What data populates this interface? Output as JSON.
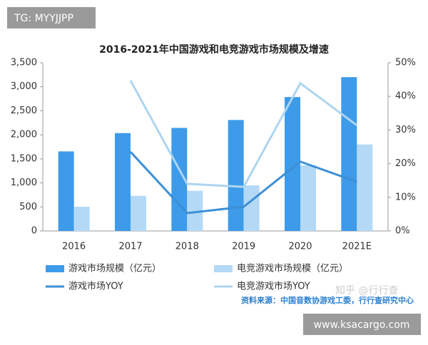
{
  "chart_data": {
    "type": "bar_line",
    "title": "2016-2021年中国游戏和电竞游戏市场规模及增速",
    "categories": [
      "2016",
      "2017",
      "2018",
      "2019",
      "2020",
      "2021E"
    ],
    "series": [
      {
        "name": "游戏市场规模（亿元）",
        "type": "bar",
        "color": "#3d9be9",
        "values": [
          1655,
          2036,
          2144,
          2309,
          2786,
          3200
        ]
      },
      {
        "name": "电竞游戏市场规模（亿元）",
        "type": "bar",
        "color": "#b3d9f7",
        "values": [
          504,
          730,
          835,
          947,
          1365,
          1800
        ]
      },
      {
        "name": "游戏市场YOY",
        "type": "line",
        "axis": "y2",
        "color": "#3d8fd6",
        "values": [
          null,
          23.5,
          5.3,
          7.2,
          20.6,
          14.6
        ]
      },
      {
        "name": "电竞游戏市场YOY",
        "type": "line",
        "axis": "y2",
        "color": "#aed5f0",
        "values": [
          null,
          44.7,
          14,
          13.1,
          43.9,
          31.4
        ]
      }
    ],
    "ylim": [
      0,
      3500
    ],
    "yticks": [
      0,
      {
        "value": 500,
        "label": "500"
      },
      {
        "value": 1000,
        "label": "1,000"
      },
      {
        "value": 1500,
        "label": "1,500"
      },
      {
        "value": 2000,
        "label": "2,000"
      },
      {
        "value": 2500,
        "label": "2,500"
      },
      {
        "value": 3000,
        "label": "3,000"
      },
      {
        "value": 3500,
        "label": "3,500"
      }
    ],
    "y2lim": [
      0,
      50
    ],
    "y2ticks": [
      {
        "value": 0,
        "label": "0%"
      },
      {
        "value": 10,
        "label": "10%"
      },
      {
        "value": 20,
        "label": "20%"
      },
      {
        "value": 30,
        "label": "30%"
      },
      {
        "value": 40,
        "label": "40%"
      },
      {
        "value": 50,
        "label": "50%"
      }
    ],
    "source": "资料来源：中国音数协游戏工委，行行查研究中心"
  },
  "watermarks": [
    "TG: MYYJJPP",
    "知乎 @行行查",
    "www.ksacargo.com"
  ]
}
